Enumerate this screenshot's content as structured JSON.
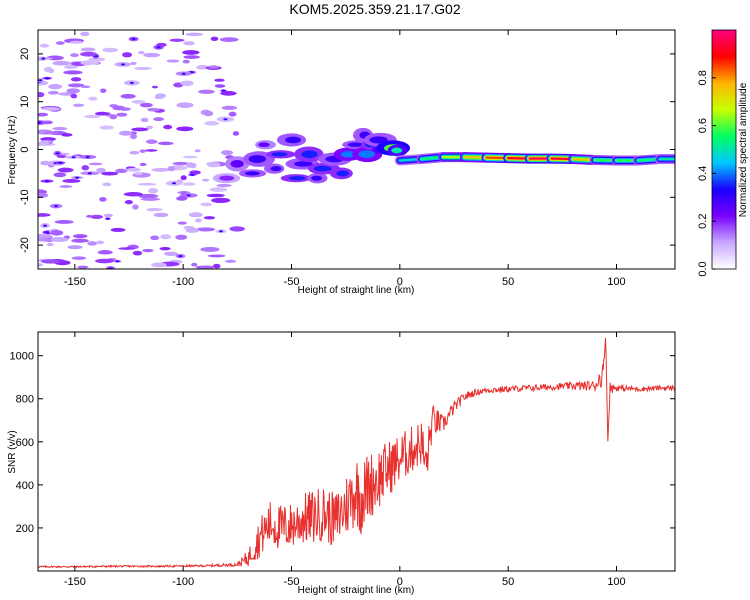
{
  "title": "KOM5.2025.359.21.17.G02",
  "colors": {
    "snr_line": "#e8302e",
    "axis": "#000000",
    "colorbar_stops": [
      "#ffffff",
      "#c8a8ff",
      "#7a00ff",
      "#1a00ff",
      "#00c8ff",
      "#00ff60",
      "#c8ff00",
      "#ffb400",
      "#ff0000",
      "#ff0080"
    ]
  },
  "chart_data": [
    {
      "id": "spectrogram",
      "type": "heatmap",
      "title": "",
      "xlabel": "Height of straight line (km)",
      "ylabel": "Frequency (Hz)",
      "xlim": [
        -167,
        127
      ],
      "ylim": [
        -25,
        25
      ],
      "xticks": [
        -150,
        -100,
        -50,
        0,
        50,
        100
      ],
      "yticks": [
        -20,
        -10,
        0,
        10,
        20
      ],
      "colorbar": {
        "label": "Normalized spectral amplitude",
        "range": [
          0,
          1
        ],
        "ticks": [
          "0.0",
          "0.2",
          "0.4",
          "0.6",
          "0.8"
        ]
      },
      "ridge": {
        "x": [
          0,
          10,
          20,
          30,
          40,
          50,
          60,
          70,
          80,
          90,
          100,
          110,
          120,
          127
        ],
        "y": [
          -2.3,
          -2.0,
          -1.6,
          -1.6,
          -1.7,
          -1.8,
          -1.9,
          -1.9,
          -2.0,
          -2.2,
          -2.3,
          -2.3,
          -2.0,
          -2.0
        ],
        "amplitude": [
          0.45,
          0.5,
          0.6,
          0.7,
          0.8,
          0.9,
          0.95,
          0.95,
          0.9,
          0.6,
          0.55,
          0.6,
          0.5,
          0.5
        ]
      },
      "blobs": [
        {
          "x": -80,
          "y": -6,
          "amp": 0.2
        },
        {
          "x": -75,
          "y": -3,
          "amp": 0.25
        },
        {
          "x": -68,
          "y": -5,
          "amp": 0.3
        },
        {
          "x": -65,
          "y": -2,
          "amp": 0.3
        },
        {
          "x": -62,
          "y": 1,
          "amp": 0.25
        },
        {
          "x": -58,
          "y": -4,
          "amp": 0.3
        },
        {
          "x": -55,
          "y": -1,
          "amp": 0.35
        },
        {
          "x": -50,
          "y": 2,
          "amp": 0.3
        },
        {
          "x": -48,
          "y": -6,
          "amp": 0.35
        },
        {
          "x": -45,
          "y": -3,
          "amp": 0.3
        },
        {
          "x": -42,
          "y": -1,
          "amp": 0.35
        },
        {
          "x": -38,
          "y": -6,
          "amp": 0.3
        },
        {
          "x": -35,
          "y": -4,
          "amp": 0.35
        },
        {
          "x": -30,
          "y": -2,
          "amp": 0.3
        },
        {
          "x": -27,
          "y": -5,
          "amp": 0.35
        },
        {
          "x": -24,
          "y": -1,
          "amp": 0.4
        },
        {
          "x": -20,
          "y": 1,
          "amp": 0.3
        },
        {
          "x": -17,
          "y": 3,
          "amp": 0.3
        },
        {
          "x": -15,
          "y": -1,
          "amp": 0.4
        },
        {
          "x": -12,
          "y": 1,
          "amp": 0.35
        },
        {
          "x": -9,
          "y": 2,
          "amp": 0.3
        },
        {
          "x": -6,
          "y": 0,
          "amp": 0.5
        },
        {
          "x": -3,
          "y": 0.3,
          "amp": 0.6
        },
        {
          "x": -1,
          "y": -0.2,
          "amp": 0.5
        }
      ],
      "noise_region_x": [
        -167,
        -75
      ]
    },
    {
      "id": "snr",
      "type": "line",
      "title": "",
      "xlabel": "Height of straight line (km)",
      "ylabel": "SNR (v/v)",
      "xlim": [
        -167,
        127
      ],
      "ylim": [
        0,
        1110
      ],
      "xticks": [
        -150,
        -100,
        -50,
        0,
        50,
        100
      ],
      "yticks": [
        200,
        400,
        600,
        800,
        1000
      ],
      "series": [
        {
          "name": "SNR",
          "x": [
            -167,
            -150,
            -130,
            -110,
            -90,
            -75,
            -70,
            -65,
            -60,
            -55,
            -50,
            -45,
            -40,
            -35,
            -30,
            -25,
            -20,
            -18,
            -15,
            -10,
            -5,
            0,
            5,
            10,
            12,
            15,
            20,
            25,
            30,
            35,
            40,
            50,
            60,
            70,
            80,
            90,
            94,
            95,
            96,
            97,
            100,
            110,
            120,
            127
          ],
          "values": [
            20,
            20,
            22,
            22,
            24,
            30,
            60,
            150,
            220,
            200,
            210,
            240,
            250,
            270,
            230,
            300,
            380,
            330,
            390,
            430,
            480,
            520,
            560,
            600,
            480,
            700,
            680,
            760,
            810,
            830,
            840,
            845,
            850,
            855,
            860,
            860,
            920,
            1100,
            600,
            850,
            850,
            845,
            850,
            850
          ],
          "noise_amp": [
            4,
            4,
            4,
            4,
            5,
            8,
            40,
            90,
            110,
            110,
            110,
            120,
            130,
            130,
            130,
            150,
            170,
            170,
            160,
            150,
            130,
            120,
            110,
            110,
            120,
            80,
            40,
            30,
            20,
            15,
            15,
            15,
            15,
            15,
            18,
            25,
            60,
            0,
            0,
            30,
            15,
            12,
            12,
            12
          ]
        }
      ]
    }
  ]
}
